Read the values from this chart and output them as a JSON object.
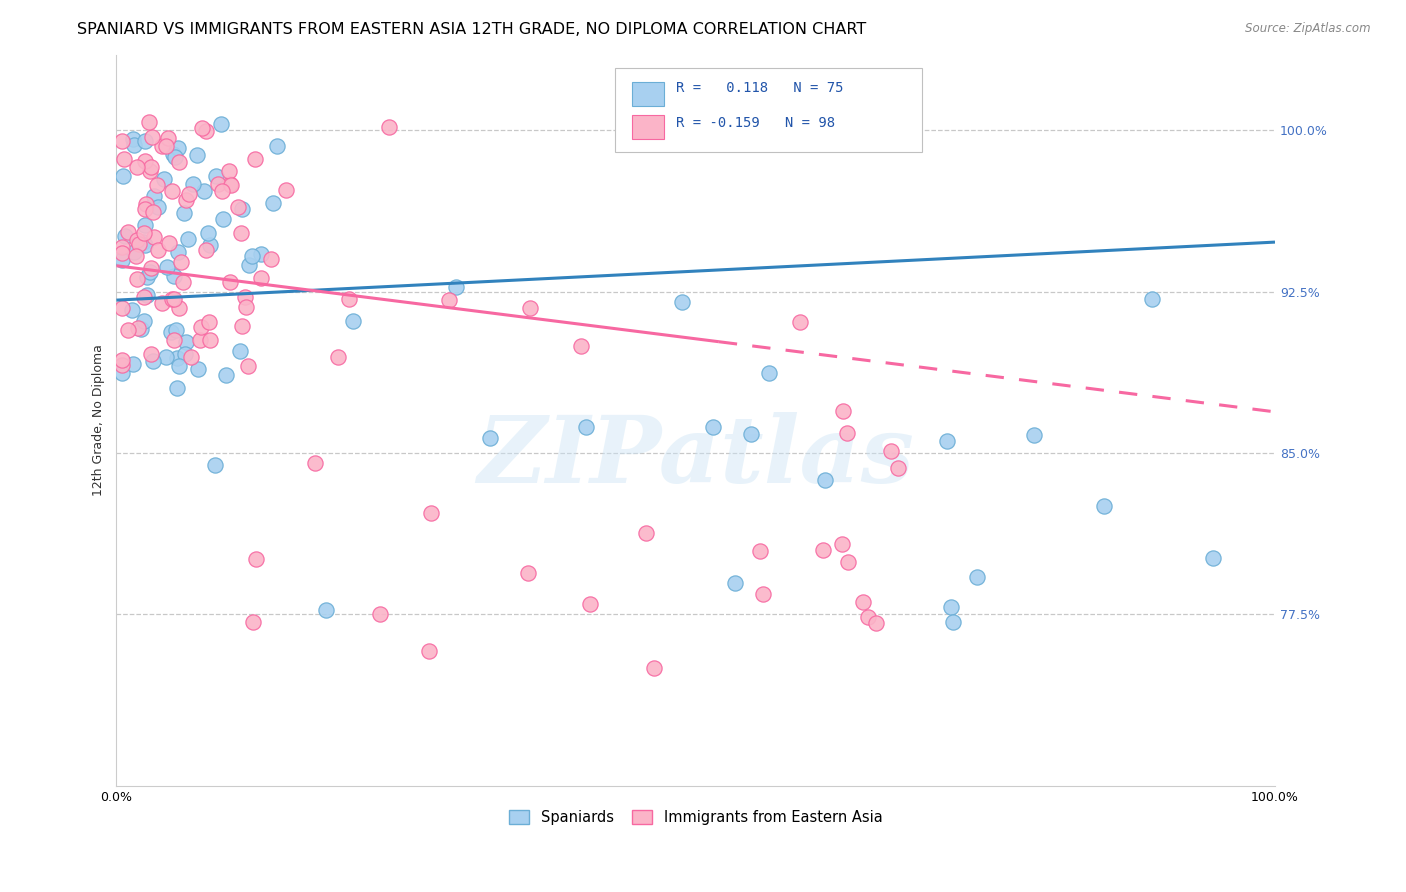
{
  "title": "SPANIARD VS IMMIGRANTS FROM EASTERN ASIA 12TH GRADE, NO DIPLOMA CORRELATION CHART",
  "source": "Source: ZipAtlas.com",
  "ylabel": "12th Grade, No Diploma",
  "ytick_labels": [
    "100.0%",
    "92.5%",
    "85.0%",
    "77.5%"
  ],
  "ytick_values": [
    1.0,
    0.925,
    0.85,
    0.775
  ],
  "xlim": [
    0.0,
    1.0
  ],
  "ylim": [
    0.695,
    1.035
  ],
  "r_spaniards": 0.118,
  "n_spaniards": 75,
  "r_eastern_asia": -0.159,
  "n_eastern_asia": 98,
  "color_spaniards_fill": "#a8d0f0",
  "color_spaniards_edge": "#6baed6",
  "color_eastern_asia_fill": "#fbb4c8",
  "color_eastern_asia_edge": "#f768a1",
  "color_spaniards_line": "#3182bd",
  "color_eastern_asia_line": "#f768a1",
  "blue_line": [
    0.0,
    0.921,
    1.0,
    0.948
  ],
  "pink_line_solid_end_x": 0.52,
  "pink_line": [
    0.0,
    0.937,
    1.0,
    0.869
  ],
  "watermark_text": "ZIPatlas",
  "legend_r1": "R =   0.118   N = 75",
  "legend_r2": "R = -0.159   N = 98",
  "title_fontsize": 11.5,
  "label_fontsize": 9,
  "tick_fontsize": 9,
  "source_fontsize": 8.5
}
